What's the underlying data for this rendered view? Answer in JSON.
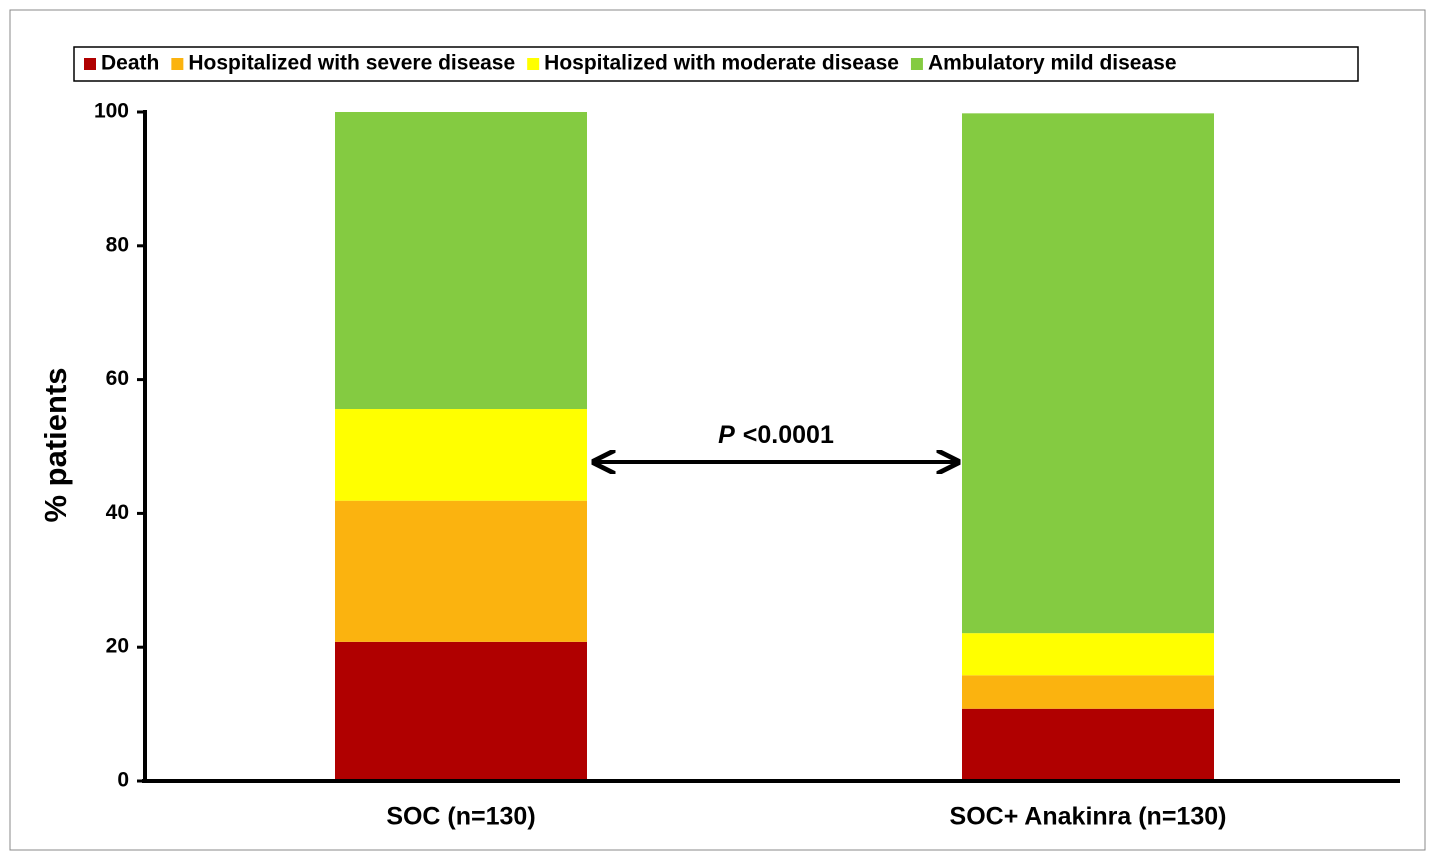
{
  "chart_data": {
    "type": "stacked_bar",
    "y_label": "% patients",
    "categories": [
      "SOC (n=130)",
      "SOC+ Anakinra (n=130)"
    ],
    "series": [
      {
        "name": "Death",
        "color": "#b00000",
        "values": [
          20.8,
          10.8
        ]
      },
      {
        "name": "Hospitalized with severe disease",
        "color": "#fbb30f",
        "values": [
          21.1,
          5.0
        ]
      },
      {
        "name": "Hospitalized with moderate disease",
        "color": "#ffff00",
        "values": [
          13.7,
          6.3
        ]
      },
      {
        "name": "Ambulatory mild disease",
        "color": "#84cb41",
        "values": [
          44.4,
          77.7
        ]
      }
    ],
    "ylim": [
      0,
      100
    ],
    "yticks": [
      0,
      20,
      40,
      60,
      80,
      100
    ],
    "annotation": [
      "P",
      "<0.0001"
    ],
    "legend": "top"
  }
}
